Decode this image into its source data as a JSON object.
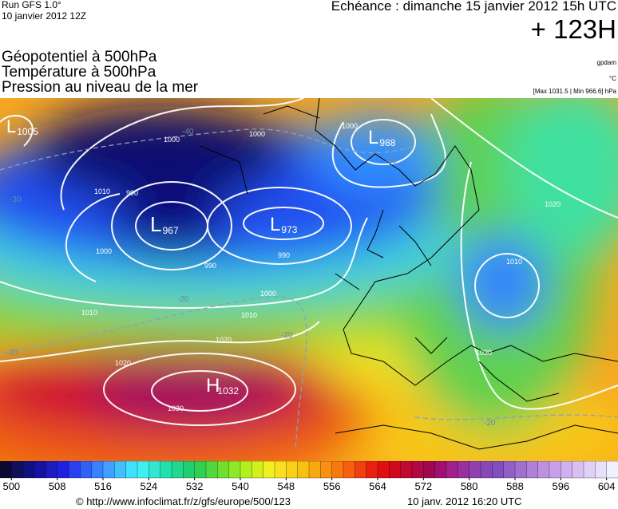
{
  "header": {
    "run": "Run GFS 1.0°",
    "date": "10 janvier 2012 12Z",
    "echeance": "Echéance : dimanche 15 janvier 2012 15h UTC",
    "lead": "+ 123H"
  },
  "layers": [
    "Géopotentiel à 500hPa",
    "Température à 500hPa",
    "Pression au niveau de la mer"
  ],
  "units": [
    "gpdam",
    "°C",
    "[Max 1031.5 | Min 966.6] hPa"
  ],
  "map": {
    "centers": [
      {
        "type": "L",
        "value": "1005"
      },
      {
        "type": "L",
        "value": "967"
      },
      {
        "type": "L",
        "value": "973"
      },
      {
        "type": "L",
        "value": "988"
      },
      {
        "type": "H",
        "value": "1032"
      }
    ],
    "isobar_labels": [
      "1000",
      "1000",
      "1000",
      "1010",
      "990",
      "1000",
      "990",
      "990",
      "1000",
      "1010",
      "1010",
      "1020",
      "1020",
      "1030",
      "1020",
      "1010",
      "1030"
    ],
    "temp_labels": [
      "-40",
      "-30",
      "-20",
      "-20",
      "-20",
      "-20",
      "-30"
    ]
  },
  "colorbar": {
    "lim": [
      498,
      606
    ],
    "ticks": [
      500,
      508,
      516,
      524,
      532,
      540,
      548,
      556,
      564,
      572,
      580,
      588,
      596,
      604
    ],
    "colors": [
      "#0a0a30",
      "#10105a",
      "#101080",
      "#1414a0",
      "#1c1cc0",
      "#2020e0",
      "#2840f0",
      "#3060f8",
      "#3880ff",
      "#40a0ff",
      "#40c0ff",
      "#40e0ff",
      "#40f0f0",
      "#30e8d0",
      "#20e0b0",
      "#20d890",
      "#20d070",
      "#30d050",
      "#50d840",
      "#70e030",
      "#90e828",
      "#b0f020",
      "#d0f020",
      "#f0f020",
      "#f8e020",
      "#f8d018",
      "#f8c010",
      "#f8a810",
      "#f89010",
      "#f87810",
      "#f86010",
      "#f04010",
      "#e82010",
      "#e01010",
      "#d00820",
      "#c00830",
      "#b00840",
      "#a00850",
      "#a01070",
      "#a02090",
      "#9830a0",
      "#9040b0",
      "#8848b8",
      "#8050c0",
      "#9060c8",
      "#a070d0",
      "#b080d8",
      "#c090e0",
      "#c8a0e8",
      "#d0b0f0",
      "#d8c0f0",
      "#e0d0f8",
      "#e8e0f8",
      "#f0f0ff"
    ]
  },
  "footer": {
    "url": "© http://www.infoclimat.fr/z/gfs/europe/500/123",
    "time": "10 janv. 2012 16:20 UTC"
  }
}
